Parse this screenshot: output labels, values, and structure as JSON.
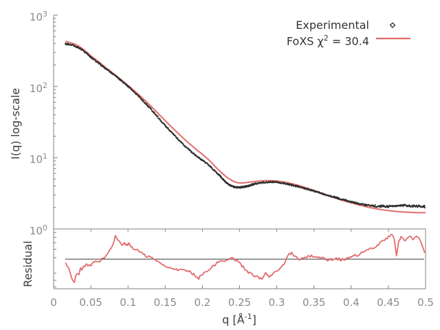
{
  "chart_data": {
    "type": "line",
    "title": "",
    "xlabel_prefix": "q [Å",
    "xlabel_sup": "-1",
    "xlabel_suffix": "]",
    "x": {
      "lim": [
        0,
        0.5
      ],
      "tick_values": [
        0,
        0.05,
        0.1,
        0.15,
        0.2,
        0.25,
        0.3,
        0.35,
        0.4,
        0.45,
        0.5
      ],
      "tick_labels": [
        "0",
        "0.05",
        "0.1",
        "0.15",
        "0.2",
        "0.25",
        "0.3",
        "0.35",
        "0.4",
        "0.45",
        "0.5"
      ]
    },
    "main_panel": {
      "ylabel": "I(q) log-scale",
      "yscale": "log",
      "ylim": [
        1,
        1000
      ],
      "ytick_base": "10",
      "ytick_exponents": [
        3,
        2,
        1,
        0
      ]
    },
    "residual_panel": {
      "ylabel": "Residual",
      "note": "residual values are normalized panel coordinates, 0 = panel bottom, 1 = panel top",
      "reference_value": 0.494
    },
    "legend": {
      "entries": [
        {
          "label": "Experimental",
          "marker": "diamond",
          "color": "#2b2b2b"
        },
        {
          "label_prefix": "FoXS χ",
          "label_sup": "2",
          "label_suffix": " = 30.4",
          "label_plain": "FoXS chi^2 = 30.4",
          "marker": "line",
          "color": "#e26b6b"
        }
      ]
    },
    "series": [
      {
        "name": "Experimental",
        "type": "scatter",
        "marker": "diamond",
        "color": "#2b2b2b",
        "points": [
          [
            0.016,
            398
          ],
          [
            0.02,
            389
          ],
          [
            0.03,
            363
          ],
          [
            0.04,
            316
          ],
          [
            0.05,
            257
          ],
          [
            0.06,
            214
          ],
          [
            0.07,
            178
          ],
          [
            0.08,
            148
          ],
          [
            0.09,
            122
          ],
          [
            0.1,
            100
          ],
          [
            0.11,
            79.4
          ],
          [
            0.12,
            63.1
          ],
          [
            0.13,
            49.0
          ],
          [
            0.14,
            37.2
          ],
          [
            0.15,
            28.2
          ],
          [
            0.16,
            21.9
          ],
          [
            0.17,
            17.0
          ],
          [
            0.18,
            13.5
          ],
          [
            0.19,
            11.0
          ],
          [
            0.2,
            9.23
          ],
          [
            0.21,
            7.59
          ],
          [
            0.22,
            6.03
          ],
          [
            0.225,
            5.37
          ],
          [
            0.23,
            4.68
          ],
          [
            0.235,
            4.22
          ],
          [
            0.24,
            3.98
          ],
          [
            0.245,
            3.85
          ],
          [
            0.25,
            3.82
          ],
          [
            0.255,
            3.89
          ],
          [
            0.26,
            3.98
          ],
          [
            0.265,
            4.12
          ],
          [
            0.27,
            4.27
          ],
          [
            0.28,
            4.45
          ],
          [
            0.29,
            4.52
          ],
          [
            0.3,
            4.49
          ],
          [
            0.31,
            4.35
          ],
          [
            0.32,
            4.12
          ],
          [
            0.33,
            3.89
          ],
          [
            0.34,
            3.65
          ],
          [
            0.35,
            3.4
          ],
          [
            0.36,
            3.16
          ],
          [
            0.37,
            2.94
          ],
          [
            0.38,
            2.74
          ],
          [
            0.39,
            2.56
          ],
          [
            0.4,
            2.4
          ],
          [
            0.41,
            2.27
          ],
          [
            0.42,
            2.17
          ],
          [
            0.43,
            2.11
          ],
          [
            0.44,
            2.08
          ],
          [
            0.45,
            2.07
          ],
          [
            0.46,
            2.1
          ],
          [
            0.47,
            2.14
          ],
          [
            0.48,
            2.1
          ],
          [
            0.49,
            2.08
          ],
          [
            0.499,
            2.05
          ]
        ]
      },
      {
        "name": "FoXS fit",
        "type": "line",
        "color": "#e26b6b",
        "points": [
          [
            0.016,
            432
          ],
          [
            0.02,
            417
          ],
          [
            0.03,
            385
          ],
          [
            0.04,
            331
          ],
          [
            0.05,
            269
          ],
          [
            0.06,
            224
          ],
          [
            0.07,
            184
          ],
          [
            0.08,
            153
          ],
          [
            0.09,
            126
          ],
          [
            0.1,
            103.5
          ],
          [
            0.11,
            84.1
          ],
          [
            0.12,
            67.6
          ],
          [
            0.13,
            53.7
          ],
          [
            0.14,
            42.2
          ],
          [
            0.15,
            33.1
          ],
          [
            0.16,
            26.0
          ],
          [
            0.17,
            20.7
          ],
          [
            0.18,
            16.6
          ],
          [
            0.19,
            13.5
          ],
          [
            0.2,
            11.1
          ],
          [
            0.21,
            9.02
          ],
          [
            0.22,
            7.0
          ],
          [
            0.23,
            5.62
          ],
          [
            0.235,
            5.13
          ],
          [
            0.24,
            4.76
          ],
          [
            0.245,
            4.52
          ],
          [
            0.25,
            4.42
          ],
          [
            0.255,
            4.42
          ],
          [
            0.26,
            4.49
          ],
          [
            0.27,
            4.62
          ],
          [
            0.28,
            4.73
          ],
          [
            0.29,
            4.76
          ],
          [
            0.3,
            4.7
          ],
          [
            0.31,
            4.55
          ],
          [
            0.32,
            4.32
          ],
          [
            0.33,
            4.06
          ],
          [
            0.34,
            3.76
          ],
          [
            0.35,
            3.47
          ],
          [
            0.36,
            3.18
          ],
          [
            0.37,
            2.92
          ],
          [
            0.38,
            2.68
          ],
          [
            0.39,
            2.48
          ],
          [
            0.4,
            2.32
          ],
          [
            0.41,
            2.18
          ],
          [
            0.42,
            2.05
          ],
          [
            0.43,
            1.95
          ],
          [
            0.44,
            1.87
          ],
          [
            0.45,
            1.81
          ],
          [
            0.46,
            1.76
          ],
          [
            0.47,
            1.73
          ],
          [
            0.48,
            1.71
          ],
          [
            0.49,
            1.69
          ],
          [
            0.5,
            1.69
          ]
        ]
      }
    ],
    "residual_series": {
      "name": "Residual",
      "type": "line",
      "color": "#e26b6b",
      "points": [
        [
          0.016,
          0.44
        ],
        [
          0.018,
          0.4
        ],
        [
          0.02,
          0.35
        ],
        [
          0.022,
          0.28
        ],
        [
          0.024,
          0.2
        ],
        [
          0.026,
          0.12
        ],
        [
          0.028,
          0.09
        ],
        [
          0.03,
          0.22
        ],
        [
          0.032,
          0.27
        ],
        [
          0.034,
          0.25
        ],
        [
          0.036,
          0.33
        ],
        [
          0.038,
          0.31
        ],
        [
          0.04,
          0.38
        ],
        [
          0.042,
          0.36
        ],
        [
          0.044,
          0.42
        ],
        [
          0.046,
          0.4
        ],
        [
          0.048,
          0.42
        ],
        [
          0.05,
          0.4
        ],
        [
          0.053,
          0.45
        ],
        [
          0.056,
          0.44
        ],
        [
          0.059,
          0.47
        ],
        [
          0.062,
          0.46
        ],
        [
          0.065,
          0.52
        ],
        [
          0.068,
          0.53
        ],
        [
          0.071,
          0.55
        ],
        [
          0.074,
          0.62
        ],
        [
          0.077,
          0.68
        ],
        [
          0.08,
          0.75
        ],
        [
          0.083,
          0.88
        ],
        [
          0.086,
          0.82
        ],
        [
          0.089,
          0.78
        ],
        [
          0.092,
          0.74
        ],
        [
          0.095,
          0.77
        ],
        [
          0.098,
          0.73
        ],
        [
          0.101,
          0.75
        ],
        [
          0.104,
          0.7
        ],
        [
          0.107,
          0.67
        ],
        [
          0.11,
          0.66
        ],
        [
          0.113,
          0.64
        ],
        [
          0.116,
          0.62
        ],
        [
          0.119,
          0.6
        ],
        [
          0.122,
          0.57
        ],
        [
          0.125,
          0.53
        ],
        [
          0.128,
          0.55
        ],
        [
          0.131,
          0.52
        ],
        [
          0.134,
          0.5
        ],
        [
          0.137,
          0.48
        ],
        [
          0.14,
          0.46
        ],
        [
          0.144,
          0.42
        ],
        [
          0.148,
          0.4
        ],
        [
          0.152,
          0.38
        ],
        [
          0.156,
          0.36
        ],
        [
          0.16,
          0.34
        ],
        [
          0.165,
          0.33
        ],
        [
          0.17,
          0.31
        ],
        [
          0.175,
          0.32
        ],
        [
          0.18,
          0.29
        ],
        [
          0.185,
          0.27
        ],
        [
          0.19,
          0.23
        ],
        [
          0.195,
          0.18
        ],
        [
          0.2,
          0.25
        ],
        [
          0.205,
          0.29
        ],
        [
          0.21,
          0.34
        ],
        [
          0.215,
          0.38
        ],
        [
          0.22,
          0.43
        ],
        [
          0.225,
          0.46
        ],
        [
          0.23,
          0.48
        ],
        [
          0.235,
          0.5
        ],
        [
          0.24,
          0.51
        ],
        [
          0.245,
          0.48
        ],
        [
          0.25,
          0.44
        ],
        [
          0.255,
          0.36
        ],
        [
          0.26,
          0.29
        ],
        [
          0.265,
          0.25
        ],
        [
          0.27,
          0.21
        ],
        [
          0.275,
          0.19
        ],
        [
          0.28,
          0.18
        ],
        [
          0.285,
          0.25
        ],
        [
          0.29,
          0.2
        ],
        [
          0.295,
          0.24
        ],
        [
          0.3,
          0.29
        ],
        [
          0.305,
          0.35
        ],
        [
          0.31,
          0.4
        ],
        [
          0.315,
          0.57
        ],
        [
          0.32,
          0.6
        ],
        [
          0.325,
          0.54
        ],
        [
          0.33,
          0.48
        ],
        [
          0.335,
          0.51
        ],
        [
          0.34,
          0.53
        ],
        [
          0.345,
          0.54
        ],
        [
          0.35,
          0.55
        ],
        [
          0.355,
          0.53
        ],
        [
          0.36,
          0.52
        ],
        [
          0.365,
          0.5
        ],
        [
          0.37,
          0.48
        ],
        [
          0.375,
          0.5
        ],
        [
          0.38,
          0.51
        ],
        [
          0.385,
          0.49
        ],
        [
          0.39,
          0.48
        ],
        [
          0.395,
          0.5
        ],
        [
          0.4,
          0.53
        ],
        [
          0.405,
          0.55
        ],
        [
          0.41,
          0.57
        ],
        [
          0.415,
          0.6
        ],
        [
          0.42,
          0.63
        ],
        [
          0.425,
          0.66
        ],
        [
          0.43,
          0.69
        ],
        [
          0.435,
          0.73
        ],
        [
          0.44,
          0.78
        ],
        [
          0.445,
          0.82
        ],
        [
          0.45,
          0.86
        ],
        [
          0.455,
          0.91
        ],
        [
          0.458,
          0.84
        ],
        [
          0.461,
          0.55
        ],
        [
          0.464,
          0.8
        ],
        [
          0.467,
          0.87
        ],
        [
          0.47,
          0.84
        ],
        [
          0.473,
          0.8
        ],
        [
          0.476,
          0.84
        ],
        [
          0.479,
          0.87
        ],
        [
          0.482,
          0.84
        ],
        [
          0.485,
          0.83
        ],
        [
          0.488,
          0.86
        ],
        [
          0.491,
          0.85
        ],
        [
          0.494,
          0.78
        ],
        [
          0.497,
          0.68
        ],
        [
          0.499,
          0.6
        ]
      ]
    },
    "colors": {
      "axis": "#7f7f7f",
      "tick_label": "#8a8a8a",
      "axis_title": "#3c3c3c",
      "reference_line": "#333333",
      "experimental": "#2b2b2b",
      "fit": "#e26b6b",
      "background": "#ffffff"
    }
  }
}
